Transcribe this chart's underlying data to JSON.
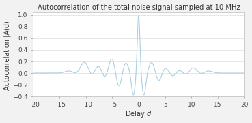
{
  "title": "Autocorrelation of the total noise signal sampled at 10 MHz",
  "xlabel": "Delay $d$",
  "ylabel": "Autocorrelation |A(d)|",
  "xlim": [
    -20,
    20
  ],
  "ylim": [
    -0.4,
    1.05
  ],
  "xticks": [
    -20,
    -15,
    -10,
    -5,
    0,
    5,
    10,
    15,
    20
  ],
  "yticks": [
    -0.4,
    -0.2,
    0.0,
    0.2,
    0.4,
    0.6,
    0.8,
    1.0
  ],
  "line_color": "#aacfdf",
  "bg_color": "#f2f2f2",
  "plot_bg": "#ffffff",
  "title_fontsize": 7.2,
  "label_fontsize": 7.0,
  "tick_fontsize": 6.5
}
